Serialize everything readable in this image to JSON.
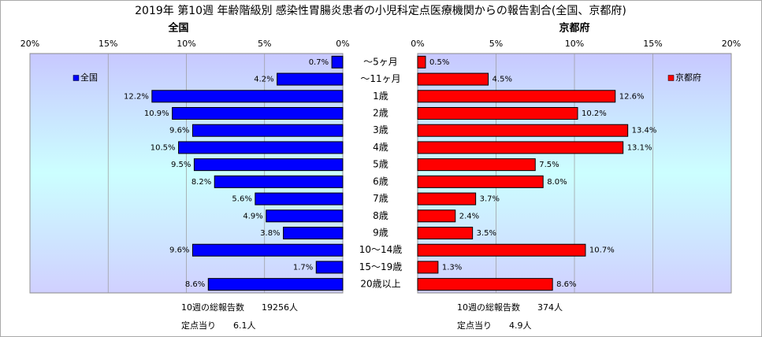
{
  "chart_data": {
    "type": "bar",
    "orientation": "horizontal",
    "title": "2019年 第10週 年齢階級別 感染性胃腸炎患者の小児科定点医療機関からの報告割合(全国、京都府)",
    "categories": [
      "～5ヶ月",
      "～11ヶ月",
      "1歳",
      "2歳",
      "3歳",
      "4歳",
      "5歳",
      "6歳",
      "7歳",
      "8歳",
      "9歳",
      "10～14歳",
      "15～19歳",
      "20歳以上"
    ],
    "grid": true,
    "series": [
      {
        "name": "全国",
        "color": "#0000ff",
        "direction": "left",
        "legend": "upper left",
        "values": [
          0.7,
          4.2,
          12.2,
          10.9,
          9.6,
          10.5,
          9.5,
          8.2,
          5.6,
          4.9,
          3.8,
          9.6,
          1.7,
          8.6
        ],
        "value_labels": [
          "0.7%",
          "4.2%",
          "12.2%",
          "10.9%",
          "9.6%",
          "10.5%",
          "9.5%",
          "8.2%",
          "5.6%",
          "4.9%",
          "3.8%",
          "9.6%",
          "1.7%",
          "8.6%"
        ],
        "xlim": [
          0,
          20
        ],
        "xticks": [
          {
            "value": 0,
            "label": "0%"
          },
          {
            "value": 5,
            "label": "5%"
          },
          {
            "value": 10,
            "label": "10%"
          },
          {
            "value": 15,
            "label": "15%"
          },
          {
            "value": 20,
            "label": "20%"
          }
        ],
        "notes": [
          "10週の総報告数　　19256人",
          "定点当り　　6.1人"
        ]
      },
      {
        "name": "京都府",
        "color": "#ff0000",
        "direction": "right",
        "legend": "upper right",
        "values": [
          0.5,
          4.5,
          12.6,
          10.2,
          13.4,
          13.1,
          7.5,
          8.0,
          3.7,
          2.4,
          3.5,
          10.7,
          1.3,
          8.6
        ],
        "value_labels": [
          "0.5%",
          "4.5%",
          "12.6%",
          "10.2%",
          "13.4%",
          "13.1%",
          "7.5%",
          "8.0%",
          "3.7%",
          "2.4%",
          "3.5%",
          "10.7%",
          "1.3%",
          "8.6%"
        ],
        "xlim": [
          0,
          20
        ],
        "xticks": [
          {
            "value": 0,
            "label": "0%"
          },
          {
            "value": 5,
            "label": "5%"
          },
          {
            "value": 10,
            "label": "10%"
          },
          {
            "value": 15,
            "label": "15%"
          },
          {
            "value": 20,
            "label": "20%"
          }
        ],
        "notes": [
          "10週の総報告数　　374人",
          "定点当り　　4.9人"
        ]
      }
    ]
  }
}
